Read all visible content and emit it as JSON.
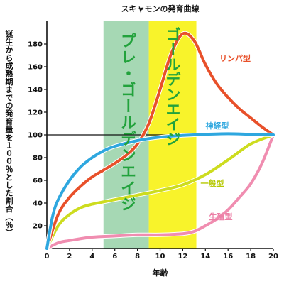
{
  "chart_data": {
    "type": "line",
    "title": "スキャモンの発育曲線",
    "xlabel": "年齢",
    "ylabel": "誕生から成熟期までの発育量を１００％とした割合（％）",
    "xlim": [
      0,
      20
    ],
    "ylim": [
      0,
      200
    ],
    "xticks": [
      0,
      2,
      4,
      6,
      8,
      10,
      12,
      14,
      16,
      18,
      20
    ],
    "yticks": [
      20,
      40,
      60,
      80,
      100,
      120,
      140,
      160,
      180
    ],
    "grid": false,
    "legend": "inline labels",
    "reference_line": 100,
    "axis_color": "#111111",
    "bands": [
      {
        "label": "プレ・ゴールデンエイジ",
        "x": [
          5,
          9
        ],
        "color": "#a6d8b4",
        "label_color": "#22a23c"
      },
      {
        "label": "ゴールデンエイジ",
        "x": [
          9,
          13.2
        ],
        "color": "#f8f32b",
        "label_color": "#22a23c"
      }
    ],
    "series": [
      {
        "name": "リンパ型",
        "color": "#e8502a",
        "label_color": "#e8502a",
        "x": [
          0,
          1,
          2,
          3,
          4,
          5,
          6,
          7,
          8,
          9,
          10,
          11,
          12,
          13,
          14,
          15,
          16,
          17,
          18,
          19,
          20
        ],
        "y": [
          0,
          30,
          45,
          55,
          63,
          69,
          75,
          82,
          92,
          110,
          140,
          172,
          189,
          183,
          162,
          145,
          133,
          123,
          115,
          107,
          100
        ]
      },
      {
        "name": "神経型",
        "color": "#2ea7df",
        "label_color": "#2ea7df",
        "x": [
          0,
          0.5,
          1,
          2,
          3,
          4,
          5,
          6,
          8,
          10,
          12,
          14,
          16,
          18,
          20
        ],
        "y": [
          0,
          28,
          43,
          60,
          72,
          80,
          86,
          90,
          95,
          98,
          99.5,
          100.5,
          101,
          100.5,
          100
        ]
      },
      {
        "name": "一般型",
        "color": "#cddc1f",
        "label_color": "#b5c800",
        "x": [
          0,
          1,
          2,
          3,
          4,
          6,
          8,
          10,
          12,
          14,
          16,
          18,
          20
        ],
        "y": [
          0,
          20,
          30,
          36,
          39,
          43,
          47,
          51,
          56,
          65,
          78,
          92,
          100
        ]
      },
      {
        "name": "生殖型",
        "color": "#f08db0",
        "label_color": "#ec7fa6",
        "x": [
          0,
          1,
          2,
          4,
          6,
          8,
          10,
          12,
          13,
          14,
          15,
          16,
          17,
          18,
          19,
          20
        ],
        "y": [
          0,
          5,
          7,
          10,
          11,
          12,
          12,
          13,
          15,
          20,
          26,
          34,
          45,
          57,
          75,
          100
        ]
      }
    ]
  }
}
